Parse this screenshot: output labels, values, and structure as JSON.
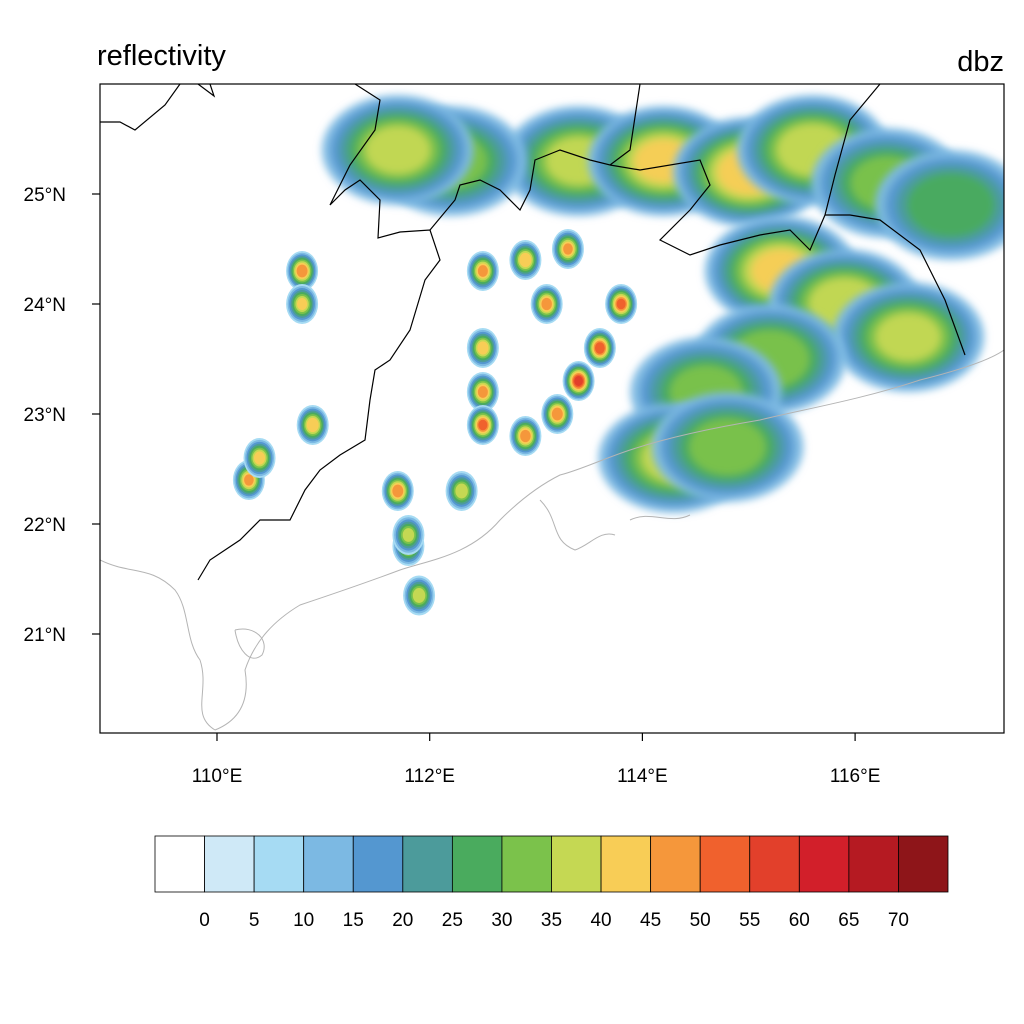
{
  "titles": {
    "left": "reflectivity",
    "right": "dbz"
  },
  "map": {
    "lon_range": [
      108.9,
      117.4
    ],
    "lat_range": [
      20.1,
      26.0
    ],
    "x_ticks": [
      {
        "lon": 110,
        "label": "110°E"
      },
      {
        "lon": 112,
        "label": "112°E"
      },
      {
        "lon": 114,
        "label": "114°E"
      },
      {
        "lon": 116,
        "label": "116°E"
      }
    ],
    "y_ticks": [
      {
        "lat": 21,
        "label": "21°N"
      },
      {
        "lat": 22,
        "label": "22°N"
      },
      {
        "lat": 23,
        "label": "23°N"
      },
      {
        "lat": 24,
        "label": "24°N"
      },
      {
        "lat": 25,
        "label": "25°N"
      }
    ]
  },
  "colorbar": {
    "labels": [
      "0",
      "5",
      "10",
      "15",
      "20",
      "25",
      "30",
      "35",
      "40",
      "45",
      "50",
      "55",
      "60",
      "65",
      "70"
    ],
    "colors": [
      "#ffffff",
      "#cfe9f7",
      "#a6dbf3",
      "#7cb9e3",
      "#5497d0",
      "#4c9b9b",
      "#4aab5e",
      "#7bc24b",
      "#c5d853",
      "#f8cd56",
      "#f5973b",
      "#f0612d",
      "#e2402b",
      "#d21f2a",
      "#b51a22",
      "#8e1519"
    ]
  },
  "storm_cells": [
    {
      "lon": 110.8,
      "lat": 24.3,
      "dbz": 48
    },
    {
      "lon": 110.8,
      "lat": 24.0,
      "dbz": 40
    },
    {
      "lon": 110.3,
      "lat": 22.4,
      "dbz": 45
    },
    {
      "lon": 110.4,
      "lat": 22.6,
      "dbz": 42
    },
    {
      "lon": 110.9,
      "lat": 22.9,
      "dbz": 44
    },
    {
      "lon": 111.7,
      "lat": 22.3,
      "dbz": 48
    },
    {
      "lon": 111.8,
      "lat": 21.8,
      "dbz": 40
    },
    {
      "lon": 111.9,
      "lat": 21.35,
      "dbz": 38
    },
    {
      "lon": 112.5,
      "lat": 23.6,
      "dbz": 42
    },
    {
      "lon": 112.5,
      "lat": 23.2,
      "dbz": 46
    },
    {
      "lon": 112.5,
      "lat": 22.9,
      "dbz": 50
    },
    {
      "lon": 112.9,
      "lat": 22.8,
      "dbz": 47
    },
    {
      "lon": 113.2,
      "lat": 23.0,
      "dbz": 48
    },
    {
      "lon": 113.4,
      "lat": 23.3,
      "dbz": 55
    },
    {
      "lon": 113.6,
      "lat": 23.6,
      "dbz": 52
    },
    {
      "lon": 113.8,
      "lat": 24.0,
      "dbz": 50
    },
    {
      "lon": 112.5,
      "lat": 24.3,
      "dbz": 46
    },
    {
      "lon": 112.9,
      "lat": 24.4,
      "dbz": 44
    },
    {
      "lon": 113.1,
      "lat": 24.0,
      "dbz": 47
    },
    {
      "lon": 111.8,
      "lat": 21.9,
      "dbz": 36
    },
    {
      "lon": 112.3,
      "lat": 22.3,
      "dbz": 38
    },
    {
      "lon": 113.3,
      "lat": 24.5,
      "dbz": 45
    }
  ],
  "rain_bands": [
    {
      "lon": 113.4,
      "lat": 25.3,
      "dbz": 35
    },
    {
      "lon": 114.2,
      "lat": 25.3,
      "dbz": 40
    },
    {
      "lon": 115.0,
      "lat": 25.2,
      "dbz": 42
    },
    {
      "lon": 115.6,
      "lat": 25.4,
      "dbz": 38
    },
    {
      "lon": 116.3,
      "lat": 25.1,
      "dbz": 30
    },
    {
      "lon": 116.9,
      "lat": 24.9,
      "dbz": 28
    },
    {
      "lon": 115.3,
      "lat": 24.3,
      "dbz": 40
    },
    {
      "lon": 115.9,
      "lat": 24.0,
      "dbz": 38
    },
    {
      "lon": 116.5,
      "lat": 23.7,
      "dbz": 35
    },
    {
      "lon": 115.2,
      "lat": 23.5,
      "dbz": 33
    },
    {
      "lon": 114.6,
      "lat": 23.2,
      "dbz": 30
    },
    {
      "lon": 114.3,
      "lat": 22.6,
      "dbz": 35
    },
    {
      "lon": 114.8,
      "lat": 22.7,
      "dbz": 32
    },
    {
      "lon": 112.2,
      "lat": 25.3,
      "dbz": 30
    },
    {
      "lon": 111.7,
      "lat": 25.4,
      "dbz": 35
    }
  ]
}
